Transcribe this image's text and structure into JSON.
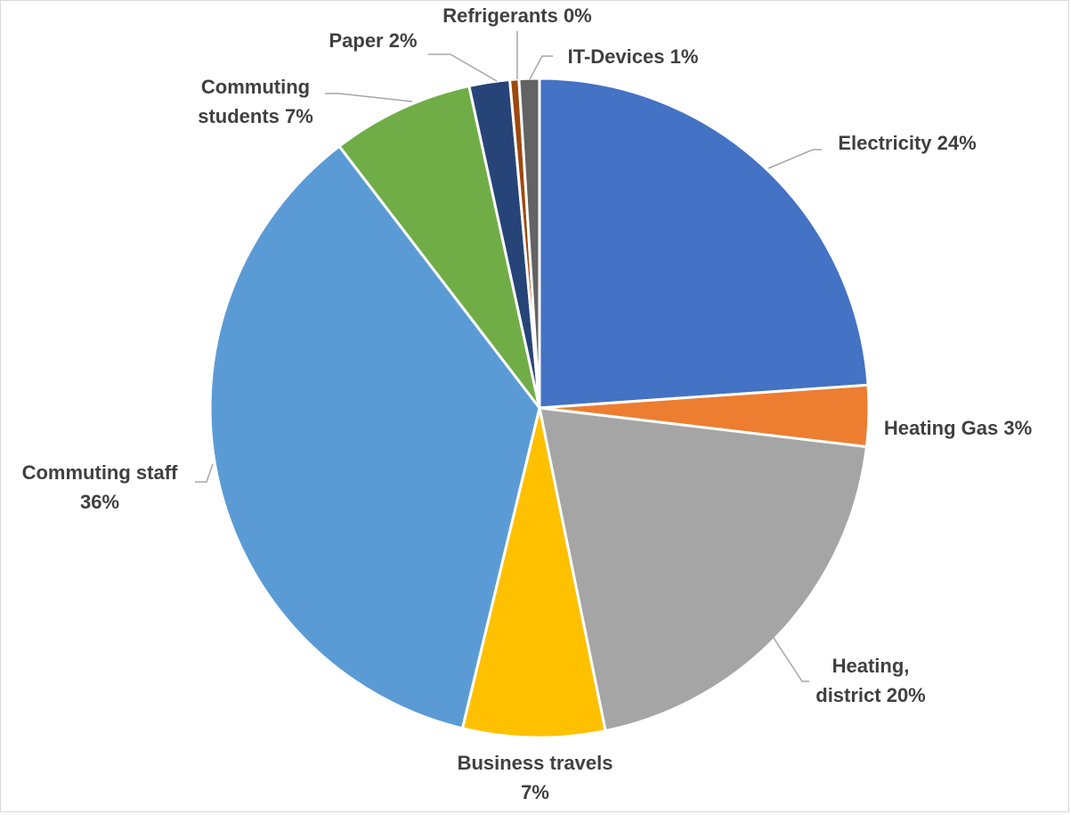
{
  "chart_data": {
    "type": "pie",
    "slices": [
      {
        "key": "electricity",
        "label": "Electricity",
        "value": 24,
        "color": "#4472C4",
        "label_lines": [
          "Electricity 24%"
        ]
      },
      {
        "key": "heating-gas",
        "label": "Heating Gas",
        "value": 3,
        "color": "#ED7D31",
        "label_lines": [
          "Heating Gas 3%"
        ]
      },
      {
        "key": "heating-district",
        "label": "Heating, district",
        "value": 20,
        "color": "#A5A5A5",
        "label_lines": [
          "Heating,",
          "district 20%"
        ]
      },
      {
        "key": "business-travels",
        "label": "Business travels",
        "value": 7,
        "color": "#FFC000",
        "label_lines": [
          "Business travels",
          "7%"
        ]
      },
      {
        "key": "commuting-staff",
        "label": "Commuting staff",
        "value": 36,
        "color": "#5B9BD5",
        "label_lines": [
          "Commuting staff",
          "36%"
        ]
      },
      {
        "key": "commuting-students",
        "label": "Commuting students",
        "value": 7,
        "color": "#70AD47",
        "label_lines": [
          "Commuting",
          "students 7%"
        ]
      },
      {
        "key": "paper",
        "label": "Paper",
        "value": 2,
        "color": "#264478",
        "label_lines": [
          "Paper 2%"
        ]
      },
      {
        "key": "refrigerants",
        "label": "Refrigerants",
        "value": 0,
        "color": "#9E480E",
        "label_lines": [
          "Refrigerants 0%"
        ]
      },
      {
        "key": "it-devices",
        "label": "IT-Devices",
        "value": 1,
        "color": "#636363",
        "label_lines": [
          "IT-Devices 1%"
        ]
      }
    ]
  }
}
